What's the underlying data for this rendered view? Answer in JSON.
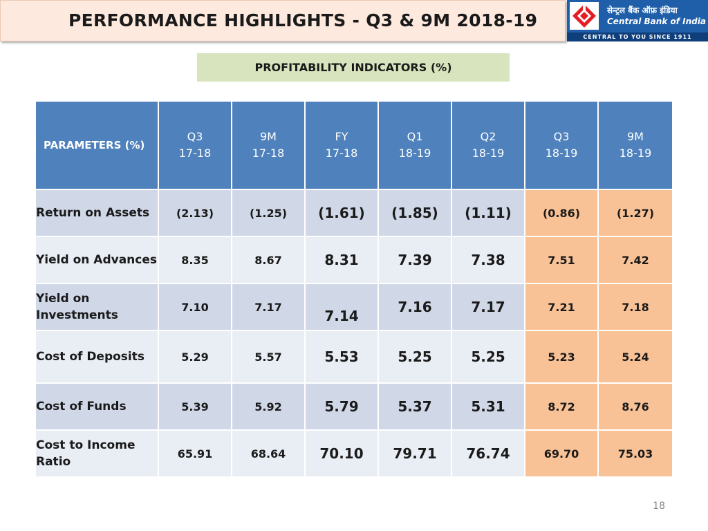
{
  "header": {
    "title": "PERFORMANCE HIGHLIGHTS - Q3 & 9M 2018-19"
  },
  "logo": {
    "hindi_name": "सेन्ट्रल बैंक ऑफ़ इंडिया",
    "english_name": "Central Bank of India",
    "tagline": "CENTRAL TO YOU SINCE 1911",
    "brand_color": "#1f5ea8",
    "emblem_color": "#e31e24"
  },
  "subtitle": "PROFITABILITY INDICATORS (%)",
  "table": {
    "param_header": "PARAMETERS (%)",
    "columns": [
      {
        "line1": "Q3",
        "line2": "17-18"
      },
      {
        "line1": "9M",
        "line2": "17-18"
      },
      {
        "line1": "FY",
        "line2": "17-18"
      },
      {
        "line1": "Q1",
        "line2": "18-19"
      },
      {
        "line1": "Q2",
        "line2": "18-19"
      },
      {
        "line1": "Q3",
        "line2": "18-19"
      },
      {
        "line1": "9M",
        "line2": "18-19"
      }
    ],
    "rows": [
      {
        "label": "Return on Assets",
        "values": [
          "(2.13)",
          "(1.25)",
          "(1.61)",
          "(1.85)",
          "(1.11)",
          "(0.86)",
          "(1.27)"
        ]
      },
      {
        "label": "Yield on Advances",
        "values": [
          "8.35",
          "8.67",
          "8.31",
          "7.39",
          "7.38",
          "7.51",
          "7.42"
        ]
      },
      {
        "label": "Yield on Investments",
        "values": [
          "7.10",
          "7.17",
          "7.14",
          "7.16",
          "7.17",
          "7.21",
          "7.18"
        ]
      },
      {
        "label": "Cost of Deposits",
        "values": [
          "5.29",
          "5.57",
          "5.53",
          "5.25",
          "5.25",
          "5.23",
          "5.24"
        ]
      },
      {
        "label": "Cost of Funds",
        "values": [
          "5.39",
          "5.92",
          "5.79",
          "5.37",
          "5.31",
          "8.72",
          "8.76"
        ]
      },
      {
        "label": "Cost to Income Ratio",
        "values": [
          "65.91",
          "68.64",
          "70.10",
          "79.71",
          "76.74",
          "69.70",
          "75.03"
        ]
      }
    ],
    "colors": {
      "header_bg": "#4f81bd",
      "row_dark": "#d0d8e8",
      "row_light": "#e9edf4",
      "highlight": "#f9c296"
    }
  },
  "page_number": "18"
}
